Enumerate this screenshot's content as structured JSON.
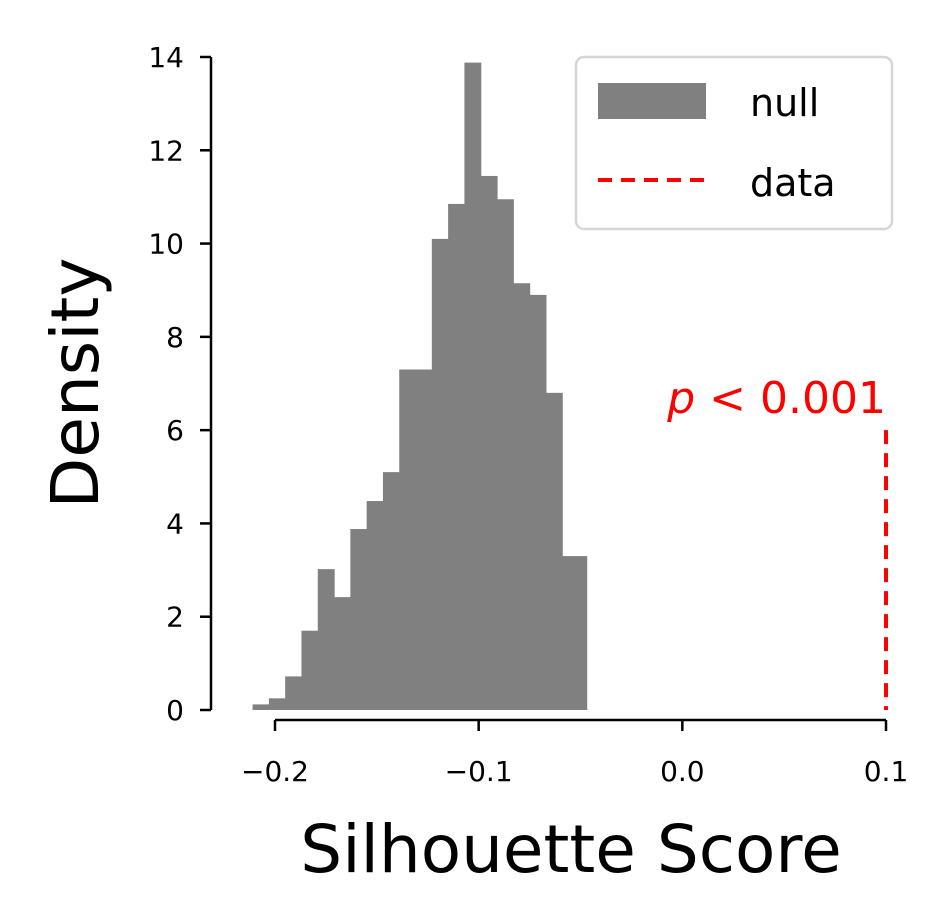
{
  "chart_data": {
    "type": "bar",
    "xlabel": "Silhouette Score",
    "ylabel": "Density",
    "xlim": [
      -0.232,
      0.102
    ],
    "ylim": [
      0,
      14
    ],
    "x_ticks": [
      -0.2,
      -0.1,
      0.0,
      0.1
    ],
    "x_tick_labels": [
      "−0.2",
      "−0.1",
      "0.0",
      "0.1"
    ],
    "y_ticks": [
      0,
      2,
      4,
      6,
      8,
      10,
      12,
      14
    ],
    "y_tick_labels": [
      "0",
      "2",
      "4",
      "6",
      "8",
      "10",
      "12",
      "14"
    ],
    "bin_edges": [
      -0.211,
      -0.203,
      -0.195,
      -0.187,
      -0.179,
      -0.171,
      -0.163,
      -0.155,
      -0.147,
      -0.139,
      -0.131,
      -0.123,
      -0.115,
      -0.107,
      -0.099,
      -0.091,
      -0.083,
      -0.075,
      -0.067,
      -0.059,
      -0.051,
      -0.047
    ],
    "series": [
      {
        "name": "null",
        "kind": "histogram",
        "color": "#808080",
        "values": [
          0.12,
          0.25,
          0.72,
          1.7,
          3.02,
          2.42,
          3.88,
          4.48,
          5.1,
          7.3,
          7.3,
          10.1,
          10.85,
          13.88,
          11.45,
          10.95,
          9.15,
          8.9,
          6.8,
          3.3,
          3.3
        ]
      },
      {
        "name": "data",
        "kind": "vline",
        "color": "#ff0000",
        "style": "dashed",
        "x": 0.1,
        "y_range": [
          0,
          6
        ]
      }
    ],
    "annotation": {
      "prefix": "p",
      "text": " < 0.001",
      "color": "#ff0000"
    },
    "legend_position": "top-right",
    "grid": false
  }
}
